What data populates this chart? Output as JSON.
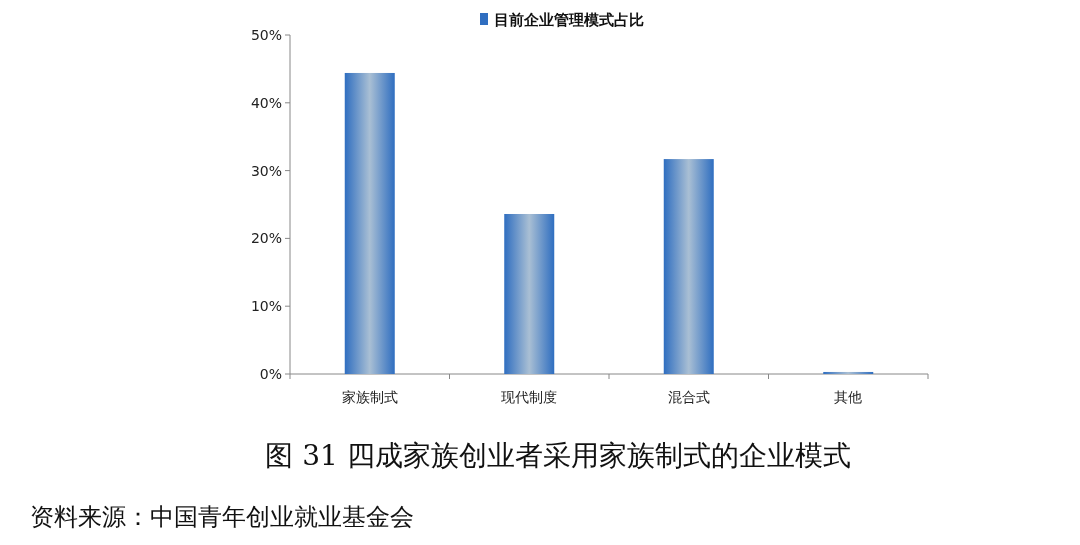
{
  "chart_data": {
    "type": "bar",
    "title": "图 31 四成家族创业者采用家族制式的企业模式",
    "categories": [
      "家族制式",
      "现代制度",
      "混合式",
      "其他"
    ],
    "series": [
      {
        "name": "目前企业管理模式占比",
        "color": "#2f6ec0",
        "values": [
          44.4,
          23.6,
          31.7,
          0.3
        ]
      }
    ],
    "ylim": [
      0,
      50
    ],
    "yticks": [
      {
        "value": 0,
        "label": "0%"
      },
      {
        "value": 10,
        "label": "10%"
      },
      {
        "value": 20,
        "label": "20%"
      },
      {
        "value": 30,
        "label": "30%"
      },
      {
        "value": 40,
        "label": "40%"
      },
      {
        "value": 50,
        "label": "50%"
      }
    ],
    "legend": "top",
    "grid": false,
    "annotations": [
      "资料来源：中国青年创业就业基金会"
    ]
  }
}
